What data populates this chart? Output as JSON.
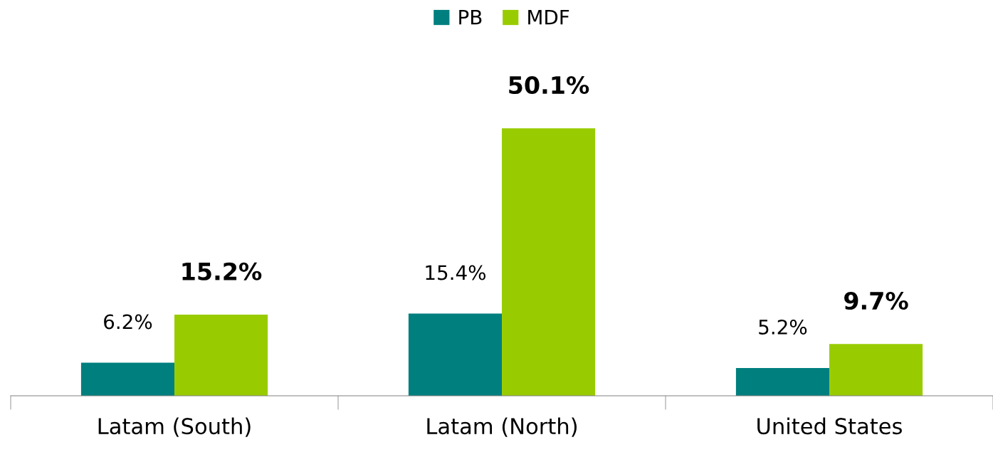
{
  "chart_data": {
    "type": "bar",
    "categories": [
      "Latam (South)",
      "Latam (North)",
      "United States"
    ],
    "series": [
      {
        "name": "PB",
        "color": "#007f7f",
        "values": [
          6.2,
          15.4,
          5.2
        ],
        "value_labels": [
          "6.2%",
          "15.4%",
          "5.2%"
        ]
      },
      {
        "name": "MDF",
        "color": "#99cc00",
        "values": [
          15.2,
          50.1,
          9.7
        ],
        "value_labels": [
          "15.2%",
          "50.1%",
          "9.7%"
        ]
      }
    ],
    "legend": "top",
    "grid": false
  }
}
